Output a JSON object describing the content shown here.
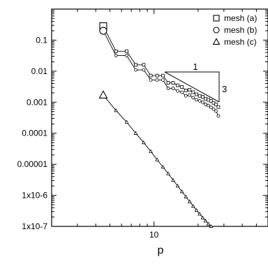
{
  "chart_data": {
    "type": "scatter",
    "xlabel": "p",
    "ylabel": "",
    "x_scale": "log",
    "y_scale": "log",
    "xlim": [
      2,
      60
    ],
    "ylim": [
      1e-07,
      1
    ],
    "x_tick_labels": [
      {
        "value": 10,
        "label": "10"
      }
    ],
    "y_tick_labels": [
      {
        "value": 0.1,
        "label": "0.1"
      },
      {
        "value": 0.01,
        "label": "0.01"
      },
      {
        "value": 0.001,
        "label": "0.001"
      },
      {
        "value": 0.0001,
        "label": "0.0001"
      },
      {
        "value": 1e-05,
        "label": "0.00001"
      },
      {
        "value": 1e-06,
        "label": "1x10-6"
      },
      {
        "value": 1e-07,
        "label": "1x10-7"
      }
    ],
    "series": [
      {
        "name": "mesh (a)",
        "marker": "square",
        "x": [
          4.5,
          5.5,
          6.5,
          7.5,
          8.5,
          9.5,
          10.5,
          11.5,
          12.5,
          13.5,
          14.5,
          15.5,
          16.5,
          17.5,
          18.5,
          19.5,
          20.5,
          21.5,
          22.5,
          23.5,
          24.5,
          25.5,
          26.5,
          27.5
        ],
        "y": [
          0.28,
          0.044,
          0.044,
          0.016,
          0.016,
          0.0072,
          0.0072,
          0.0072,
          0.0042,
          0.0042,
          0.0035,
          0.0031,
          0.0024,
          0.0025,
          0.0021,
          0.0018,
          0.0016,
          0.0015,
          0.0013,
          0.0012,
          0.0011,
          0.00095,
          0.00085,
          0.0007
        ]
      },
      {
        "name": "mesh (b)",
        "marker": "circle",
        "x": [
          4.5,
          5.5,
          6.5,
          7.5,
          8.5,
          9.5,
          10.5,
          11.5,
          12.5,
          13.5,
          14.5,
          15.5,
          16.5,
          17.5,
          18.5,
          19.5,
          20.5,
          21.5,
          22.5,
          23.5,
          24.5,
          25.5,
          26.5,
          27.5
        ],
        "y": [
          0.2,
          0.032,
          0.032,
          0.011,
          0.011,
          0.0052,
          0.0052,
          0.0052,
          0.0028,
          0.0028,
          0.0023,
          0.0021,
          0.0016,
          0.0017,
          0.0014,
          0.0012,
          0.0011,
          0.001,
          0.00085,
          0.00078,
          0.00068,
          0.0006,
          0.00052,
          0.00036
        ]
      },
      {
        "name": "mesh (c)",
        "marker": "triangle",
        "x": [
          4.5,
          5.5,
          6.5,
          7.5,
          8.5,
          9.5,
          10.5,
          11.5,
          12.5,
          13.5,
          14.5,
          15.5,
          16.5,
          17.5,
          18.5,
          19.5,
          20.5,
          21.5,
          22.5,
          23.5,
          24.5,
          25.5,
          26.5,
          27.5
        ],
        "y": [
          0.0017,
          0.00054,
          0.00023,
          0.0001,
          5e-05,
          2.6e-05,
          1.4e-05,
          8.2e-06,
          5e-06,
          3.1e-06,
          2e-06,
          1.32e-06,
          9e-07,
          6.3e-07,
          4.5e-07,
          3.3e-07,
          2.5e-07,
          1.9e-07,
          1.5e-07,
          1.2e-07,
          1e-07,
          8e-08,
          6.6e-08,
          5.5e-08
        ]
      }
    ],
    "slope_annotation": {
      "run_label": "1",
      "rise_label": "3"
    },
    "legend_position": "top-right",
    "grid": false
  }
}
